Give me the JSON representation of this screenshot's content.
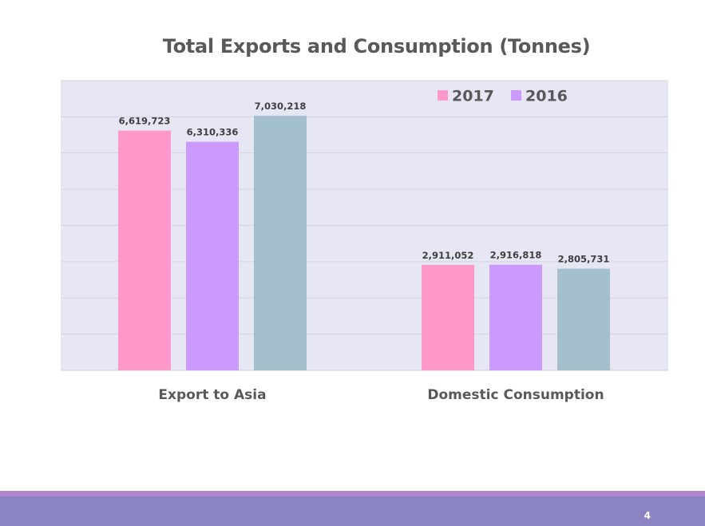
{
  "chart_data": {
    "type": "bar",
    "title": "Total Exports and Consumption (Tonnes)",
    "categories": [
      "Export to Asia",
      "Domestic Consumption"
    ],
    "series": [
      {
        "name": "2017",
        "values": [
          6619723,
          2911052
        ],
        "labels": [
          "6,619,723",
          "2,911,052"
        ],
        "color": "#ff99cc"
      },
      {
        "name": "2016",
        "values": [
          6310336,
          2916818
        ],
        "labels": [
          "6,310,336",
          "2,916,818"
        ],
        "color": "#cc99ff"
      },
      {
        "values": [
          7030218,
          2805731
        ],
        "labels": [
          "7,030,218",
          "2,805,731"
        ],
        "color": "#a5c0cd"
      }
    ],
    "ylim": [
      0,
      8000000
    ],
    "grid": true,
    "legend_position": "top-right",
    "plot_background": "#e7e6f4",
    "gridline_color": "#d5d4e4"
  },
  "footer": {
    "page_number": "4",
    "band_color": "#8a84c5",
    "strip_color": "#b186cf"
  }
}
